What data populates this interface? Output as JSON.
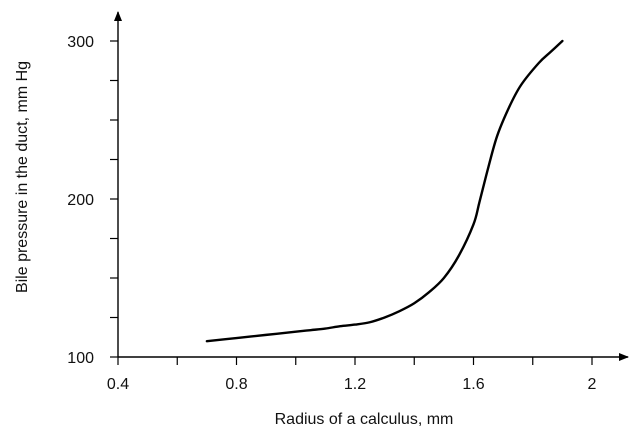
{
  "chart_data": {
    "type": "line",
    "title": "",
    "xlabel": "Radius of a calculus, mm",
    "ylabel": "Bile pressure in the duct, mm Hg",
    "xlim": [
      0.4,
      2.1
    ],
    "ylim": [
      100,
      310
    ],
    "x_ticks": [
      0.4,
      0.6,
      0.8,
      1.0,
      1.2,
      1.4,
      1.6,
      1.8,
      2.0
    ],
    "x_tick_labels": [
      "0.4",
      "",
      "0.8",
      "",
      "1.2",
      "",
      "1.6",
      "",
      "2"
    ],
    "y_ticks": [
      100,
      125,
      150,
      175,
      200,
      225,
      250,
      275,
      300
    ],
    "y_tick_labels": [
      "100",
      "",
      "",
      "",
      "200",
      "",
      "",
      "",
      "300"
    ],
    "grid": false,
    "legend": "none",
    "series": [
      {
        "color": "#000000",
        "x": [
          0.7,
          0.8,
          0.9,
          1.0,
          1.05,
          1.1,
          1.15,
          1.2,
          1.25,
          1.3,
          1.35,
          1.4,
          1.45,
          1.5,
          1.55,
          1.6,
          1.62,
          1.65,
          1.68,
          1.72,
          1.76,
          1.82,
          1.86,
          1.9
        ],
        "y": [
          110,
          112,
          114,
          116,
          117,
          118,
          119.5,
          120.5,
          122,
          125,
          129,
          134,
          141,
          150,
          164,
          184,
          198,
          220,
          240,
          258,
          272,
          286,
          293,
          300
        ]
      }
    ]
  }
}
